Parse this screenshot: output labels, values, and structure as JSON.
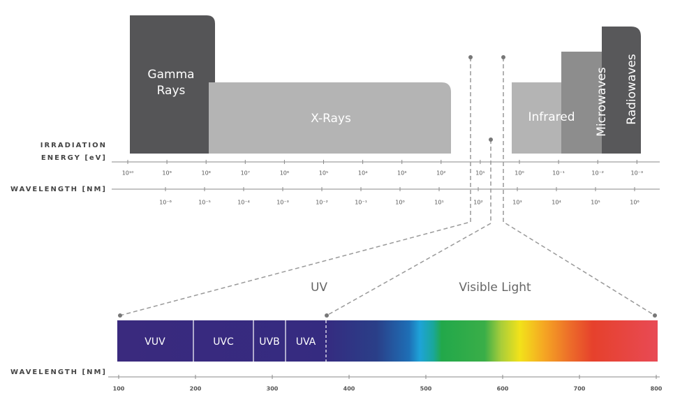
{
  "energy_axis": {
    "label_lines": [
      "IRRADIATION",
      "ENERGY [eV]"
    ],
    "ticks": [
      "10¹⁰",
      "10⁹",
      "10⁸",
      "10⁷",
      "10⁶",
      "10⁵",
      "10⁴",
      "10³",
      "10²",
      "10¹",
      "10⁰",
      "10⁻¹",
      "10⁻²",
      "10⁻³"
    ]
  },
  "wavelength_axis": {
    "label": "WAVELENGTH [NM]",
    "ticks": [
      "10⁻⁶",
      "10⁻⁵",
      "10⁻⁴",
      "10⁻³",
      "10⁻²",
      "10⁻¹",
      "10⁰",
      "10¹",
      "10²",
      "10³",
      "10⁴",
      "10⁵",
      "10⁶"
    ]
  },
  "bands": {
    "gamma": [
      "Gamma",
      "Rays"
    ],
    "xrays": "X-Rays",
    "infrared": "Infrared",
    "microwaves": "Microwaves",
    "radiowaves": "Radiowaves"
  },
  "zoom": {
    "uv_label": "UV",
    "visible_label": "Visible Light",
    "segments": [
      "VUV",
      "UVC",
      "UVB",
      "UVA"
    ],
    "axis": {
      "label": "WAVELENGTH [NM]",
      "ticks": [
        100,
        200,
        300,
        400,
        500,
        600,
        700,
        800
      ]
    }
  }
}
